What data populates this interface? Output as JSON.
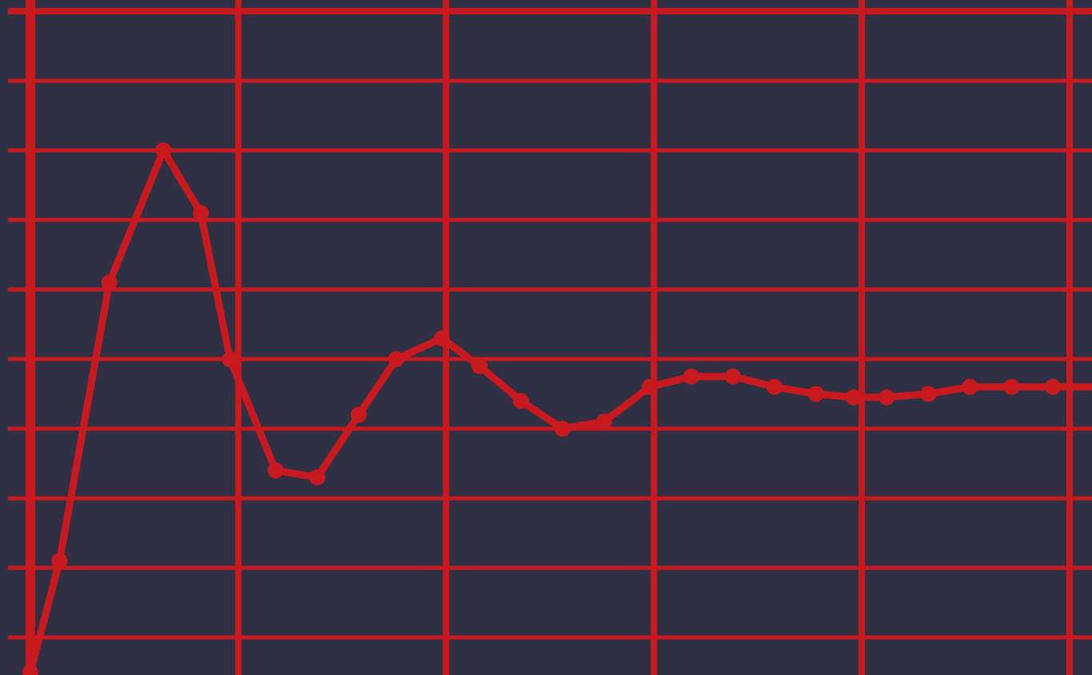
{
  "colors": {
    "background": "#2f3043",
    "grid": "#c8191f",
    "line": "#c8191f"
  },
  "chart_data": {
    "type": "line",
    "title": "",
    "xlabel": "",
    "ylabel": "",
    "grid": true,
    "legend": "none",
    "xlim": [
      0,
      26
    ],
    "ylim": [
      0,
      10
    ],
    "x_gridlines": [
      0,
      5,
      10,
      15,
      20,
      25
    ],
    "y_gridlines": [
      0,
      1,
      2,
      3,
      4,
      5,
      6,
      7,
      8,
      9,
      10
    ],
    "series": [
      {
        "x": [
          0,
          0.7,
          1.9,
          3.2,
          4.1,
          4.8,
          5.9,
          6.9,
          7.9,
          8.8,
          9.9,
          10.8,
          11.8,
          12.8,
          13.8,
          14.9,
          15.9,
          16.9,
          17.9,
          18.9,
          19.8,
          20.6,
          21.6,
          22.6,
          23.6,
          24.6,
          25.9
        ],
        "y": [
          0.5,
          2.1,
          6.1,
          8.0,
          7.1,
          5.0,
          3.4,
          3.3,
          4.2,
          5.0,
          5.3,
          4.9,
          4.4,
          4.0,
          4.1,
          4.6,
          4.75,
          4.75,
          4.6,
          4.5,
          4.45,
          4.45,
          4.5,
          4.6,
          4.6,
          4.6,
          4.6
        ]
      }
    ]
  }
}
